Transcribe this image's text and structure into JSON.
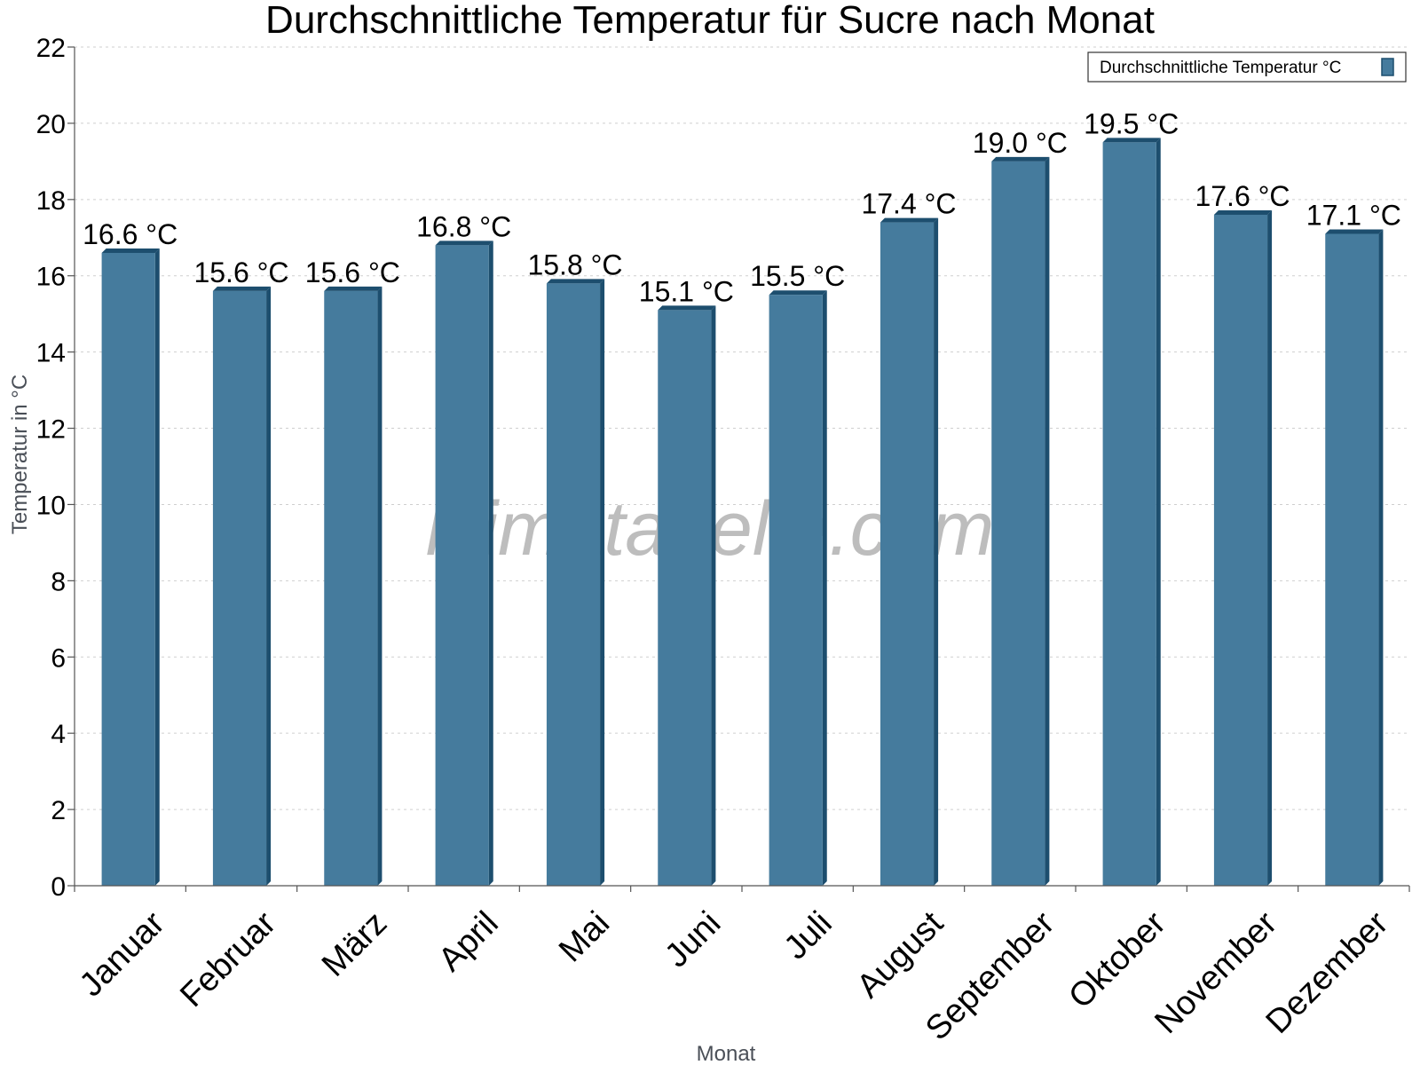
{
  "chart_data": {
    "type": "bar",
    "title": "Durchschnittliche Temperatur für Sucre nach Monat",
    "xlabel": "Monat",
    "ylabel": "Temperatur in °C",
    "categories": [
      "Januar",
      "Februar",
      "März",
      "April",
      "Mai",
      "Juni",
      "Juli",
      "August",
      "September",
      "Oktober",
      "November",
      "Dezember"
    ],
    "series": [
      {
        "name": "Durchschnittliche Temperatur °C",
        "values": [
          16.6,
          15.6,
          15.6,
          16.8,
          15.8,
          15.1,
          15.5,
          17.4,
          19.0,
          19.5,
          17.6,
          17.1
        ],
        "labels": [
          "16.6 °C",
          "15.6 °C",
          "15.6 °C",
          "16.8 °C",
          "15.8 °C",
          "15.1 °C",
          "15.5 °C",
          "17.4 °C",
          "19.0 °C",
          "19.5 °C",
          "17.6 °C",
          "17.1 °C"
        ],
        "color": "#457b9d",
        "edge_color": "#1d4e6e"
      }
    ],
    "ylim": [
      0,
      22
    ],
    "yticks": [
      0,
      2,
      4,
      6,
      8,
      10,
      12,
      14,
      16,
      18,
      20,
      22
    ],
    "grid": true,
    "legend_position": "top-right",
    "watermark": "klimatabelle.com"
  }
}
